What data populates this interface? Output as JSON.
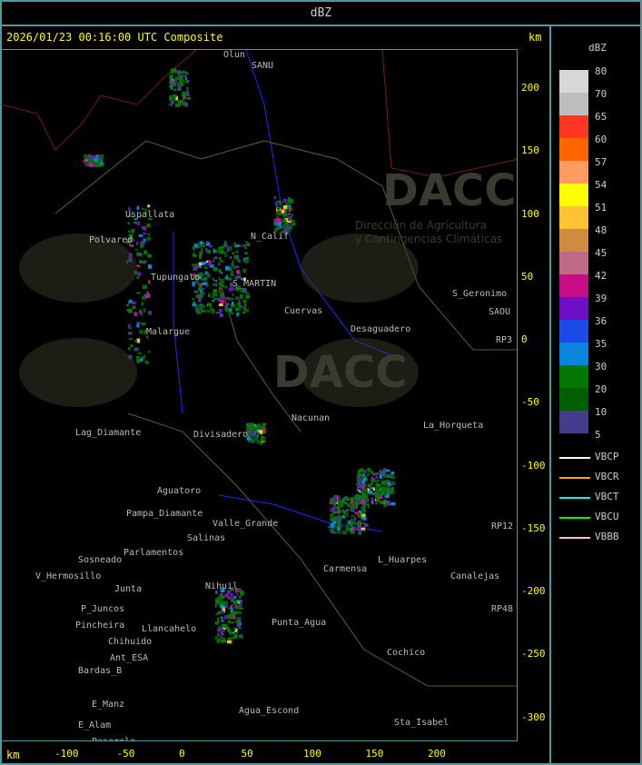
{
  "header": {
    "title": "dBZ"
  },
  "plot": {
    "timestamp": "2026/01/23 00:16:00 UTC Composite",
    "unit_top": "km",
    "unit_bottom": "km",
    "x_ticks": [
      "-100",
      "-50",
      "0",
      "50",
      "100",
      "150",
      "200"
    ],
    "y_ticks": [
      "200",
      "150",
      "100",
      "50",
      "0",
      "-50",
      "-100",
      "-150",
      "-200",
      "-250",
      "-300"
    ],
    "watermark": "DACC",
    "watermark_sub1": "Dirección de Agricultura",
    "watermark_sub2": "y Contingencias Climáticas"
  },
  "places": [
    "Uspallata",
    "Polvared",
    "Tupungato",
    "N_Calif",
    "S_MARTIN",
    "Cuervas",
    "Desaguadero",
    "S_Geronimo",
    "SAOU",
    "Lag_Diamante",
    "Nacunan",
    "La_Horqueta",
    "Divisadero",
    "Aguatoro",
    "Pampa_Diamante",
    "Valle_Grande",
    "Salinas",
    "Sosneado",
    "Parlamentos",
    "V_Hermosillo",
    "Junta",
    "P_Juncos",
    "Pincheira",
    "Llancahelo",
    "Chihuido",
    "Ant_ESA",
    "Bardas_B",
    "E_Manz",
    "E_Alam",
    "Pasarela",
    "Agua_Escond",
    "Punta_Agua",
    "Nihuil",
    "Carmensa",
    "L_Huarpes",
    "Cochico",
    "Sta_Isabel",
    "Canalejas",
    "RP3",
    "RP12",
    "RP48",
    "Olun",
    "SANU",
    "Malargue"
  ],
  "legend": {
    "title": "dBZ",
    "levels": [
      {
        "v": "80",
        "c": "#d8d8d8"
      },
      {
        "v": "70",
        "c": "#bdbdbd"
      },
      {
        "v": "65",
        "c": "#ff3622"
      },
      {
        "v": "60",
        "c": "#ff6400"
      },
      {
        "v": "57",
        "c": "#ff9a60"
      },
      {
        "v": "54",
        "c": "#ffff00"
      },
      {
        "v": "51",
        "c": "#fcc232"
      },
      {
        "v": "48",
        "c": "#cd8c3f"
      },
      {
        "v": "45",
        "c": "#bd6a88"
      },
      {
        "v": "42",
        "c": "#c90d87"
      },
      {
        "v": "39",
        "c": "#6e0ec7"
      },
      {
        "v": "36",
        "c": "#1c4ae8"
      },
      {
        "v": "35",
        "c": "#0a85de"
      },
      {
        "v": "30",
        "c": "#027800"
      },
      {
        "v": "20",
        "c": "#015f00"
      },
      {
        "v": "10",
        "c": "#443d89"
      },
      {
        "v": "5",
        "c": ""
      }
    ],
    "radars": [
      {
        "name": "VBCP",
        "c": "#ffffff"
      },
      {
        "name": "VBCR",
        "c": "#ffa500"
      },
      {
        "name": "VBCT",
        "c": "#00ffff"
      },
      {
        "name": "VBCU",
        "c": "#00ff00"
      },
      {
        "name": "VBBB",
        "c": "#ffc0cb"
      }
    ]
  }
}
